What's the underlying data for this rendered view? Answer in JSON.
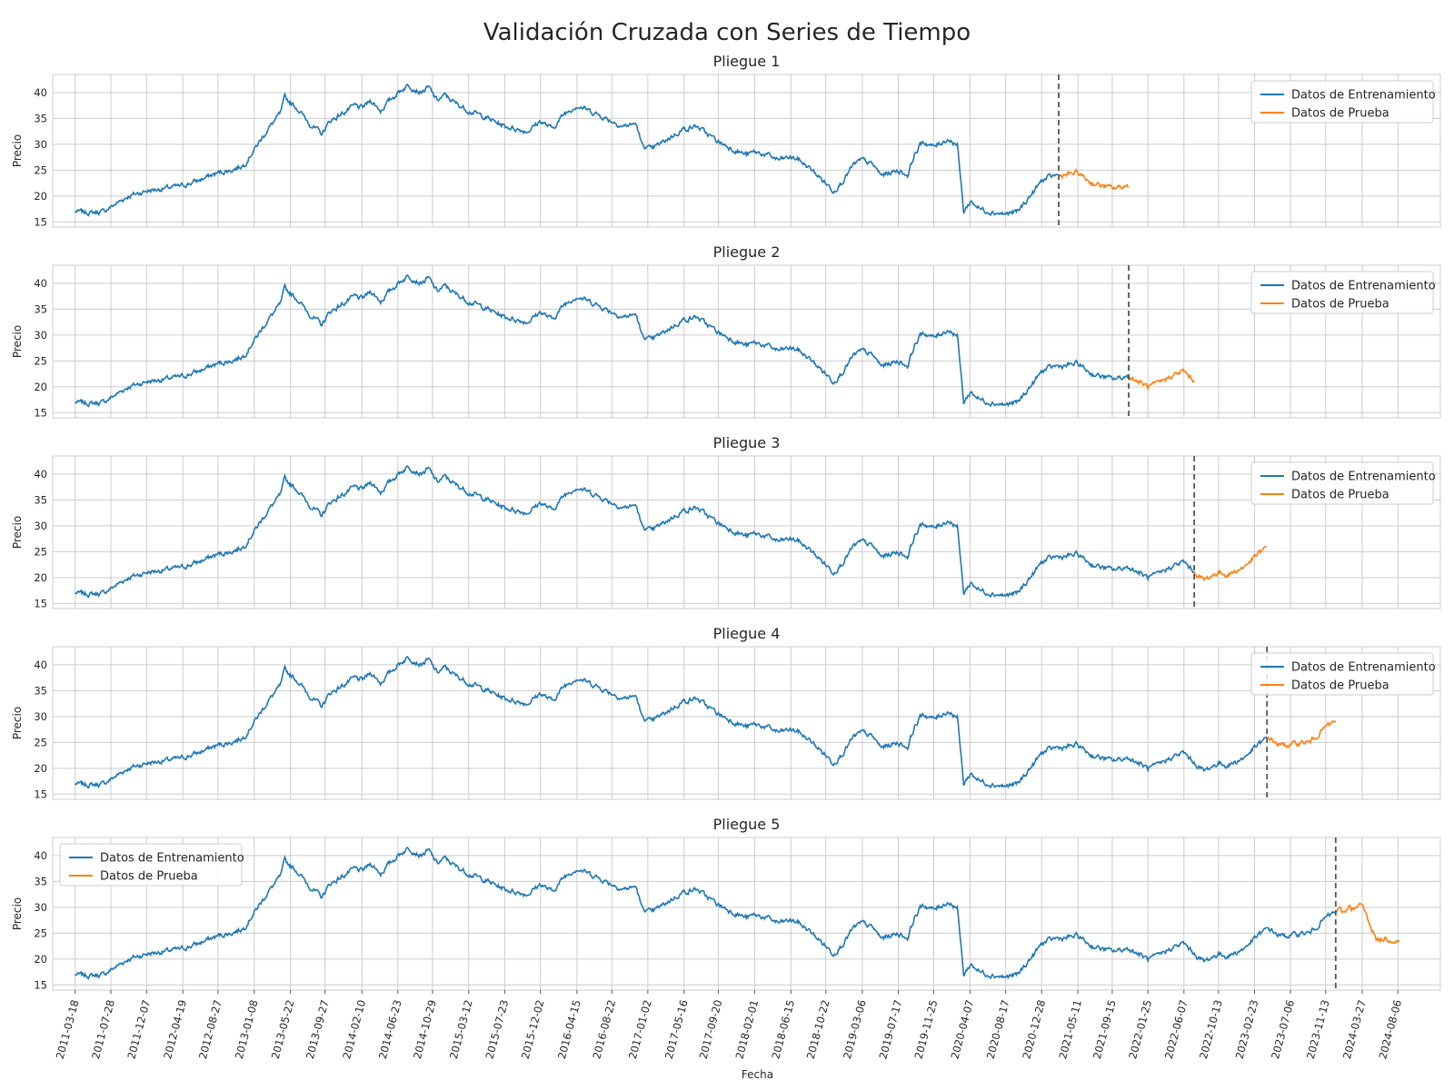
{
  "title": "Validación Cruzada con Series de Tiempo",
  "colors": {
    "train": "#1f77b4",
    "test": "#ff7f0e",
    "split": "#555555",
    "grid": "#cccccc"
  },
  "chart_data": {
    "type": "line",
    "x_axis": {
      "type": "date",
      "label": "Fecha",
      "range": [
        "2010-12-25",
        "2025-01-10"
      ],
      "tick_labels": [
        "2011-03-18",
        "2011-07-28",
        "2011-12-07",
        "2012-04-19",
        "2012-08-27",
        "2013-01-08",
        "2013-05-22",
        "2013-09-27",
        "2014-02-10",
        "2014-06-23",
        "2014-10-29",
        "2015-03-12",
        "2015-07-23",
        "2015-12-02",
        "2016-04-15",
        "2016-08-22",
        "2017-01-02",
        "2017-05-16",
        "2017-09-20",
        "2018-02-01",
        "2018-06-15",
        "2018-10-22",
        "2019-03-06",
        "2019-07-17",
        "2019-11-25",
        "2020-04-07",
        "2020-08-17",
        "2020-12-28",
        "2021-05-11",
        "2021-09-15",
        "2022-01-25",
        "2022-06-07",
        "2022-10-13",
        "2023-02-23",
        "2023-07-06",
        "2023-11-13",
        "2024-03-27",
        "2024-08-06"
      ]
    },
    "y_axis": {
      "label": "Precio",
      "range": [
        14,
        43.5
      ],
      "ticks": [
        15,
        20,
        25,
        30,
        35,
        40
      ]
    },
    "grid": true,
    "series_names": {
      "train": "Datos de Entrenamiento",
      "test": "Datos de Prueba"
    },
    "price_series": {
      "x": [
        "2011-03-18",
        "2011-05-15",
        "2011-07-01",
        "2011-08-15",
        "2011-10-01",
        "2011-12-07",
        "2012-02-15",
        "2012-04-19",
        "2012-06-15",
        "2012-08-27",
        "2012-10-15",
        "2012-12-01",
        "2013-01-08",
        "2013-03-01",
        "2013-04-15",
        "2013-05-01",
        "2013-06-15",
        "2013-08-01",
        "2013-09-15",
        "2013-10-15",
        "2013-12-01",
        "2014-01-15",
        "2014-02-10",
        "2014-03-15",
        "2014-04-20",
        "2014-05-15",
        "2014-06-23",
        "2014-08-01",
        "2014-09-15",
        "2014-10-15",
        "2014-11-15",
        "2014-12-15",
        "2015-01-20",
        "2015-03-12",
        "2015-05-01",
        "2015-07-23",
        "2015-09-01",
        "2015-10-15",
        "2015-12-02",
        "2016-01-15",
        "2016-03-01",
        "2016-04-15",
        "2016-06-01",
        "2016-08-22",
        "2016-10-01",
        "2016-11-20",
        "2016-12-10",
        "2017-01-15",
        "2017-03-15",
        "2017-05-16",
        "2017-07-01",
        "2017-09-20",
        "2017-11-15",
        "2018-01-01",
        "2018-02-01",
        "2018-03-15",
        "2018-05-01",
        "2018-06-15",
        "2018-07-15",
        "2018-09-01",
        "2018-10-22",
        "2018-11-20",
        "2018-12-25",
        "2019-02-01",
        "2019-03-06",
        "2019-04-15",
        "2019-05-15",
        "2019-07-17",
        "2019-08-20",
        "2019-09-15",
        "2019-10-15",
        "2019-11-25",
        "2020-01-15",
        "2020-02-20",
        "2020-03-15",
        "2020-04-10",
        "2020-05-15",
        "2020-06-20",
        "2020-08-17",
        "2020-10-01",
        "2020-12-01",
        "2020-12-28",
        "2021-02-15",
        "2021-03-20",
        "2021-05-11",
        "2021-07-01",
        "2021-09-15",
        "2021-11-15",
        "2022-01-25",
        "2022-03-01",
        "2022-04-15",
        "2022-06-07",
        "2022-07-15",
        "2022-08-20",
        "2022-10-13",
        "2022-11-15",
        "2023-01-15",
        "2023-02-23",
        "2023-04-15",
        "2023-05-25",
        "2023-07-06",
        "2023-08-15",
        "2023-09-15",
        "2023-11-13",
        "2024-01-01",
        "2024-01-25",
        "2024-02-05",
        "2024-02-25",
        "2024-03-27",
        "2024-04-20",
        "2024-05-20",
        "2024-06-20",
        "2024-08-06",
        "2024-09-15",
        "2024-10-01"
      ],
      "y": [
        17.0,
        16.8,
        17.0,
        18.5,
        20.0,
        21.0,
        21.5,
        22.0,
        23.0,
        24.5,
        25.0,
        26.0,
        29.0,
        33.0,
        36.0,
        39.0,
        37.0,
        34.0,
        32.0,
        34.5,
        36.0,
        37.5,
        37.0,
        38.5,
        36.5,
        38.0,
        40.0,
        41.5,
        40.0,
        41.0,
        38.5,
        39.5,
        38.0,
        36.5,
        35.5,
        33.5,
        33.0,
        32.5,
        34.5,
        33.0,
        36.0,
        37.5,
        36.5,
        34.5,
        33.5,
        34.0,
        30.0,
        29.0,
        31.0,
        33.0,
        33.5,
        30.5,
        29.0,
        28.0,
        28.5,
        28.0,
        27.0,
        27.5,
        27.0,
        25.0,
        22.5,
        21.0,
        23.0,
        26.0,
        27.0,
        26.0,
        24.0,
        25.0,
        24.0,
        28.0,
        30.5,
        29.5,
        31.0,
        30.0,
        17.0,
        19.0,
        17.5,
        17.0,
        16.5,
        17.0,
        21.0,
        23.0,
        24.0,
        24.0,
        24.5,
        22.5,
        21.5,
        22.0,
        20.0,
        20.5,
        22.0,
        23.0,
        21.0,
        19.5,
        21.0,
        20.5,
        22.0,
        24.0,
        26.0,
        24.5,
        24.5,
        25.0,
        25.0,
        28.0,
        29.5,
        29.0,
        30.5,
        29.5,
        30.5,
        27.5,
        23.5,
        24.0,
        23.5,
        23.0,
        23.5
      ]
    },
    "folds": [
      {
        "title": "Pliegue 1",
        "split": "2021-03-01",
        "test_end": "2021-11-15",
        "legend": "upper-right"
      },
      {
        "title": "Pliegue 2",
        "split": "2021-11-15",
        "test_end": "2022-07-15",
        "legend": "upper-right"
      },
      {
        "title": "Pliegue 3",
        "split": "2022-07-15",
        "test_end": "2023-04-10",
        "legend": "upper-right"
      },
      {
        "title": "Pliegue 4",
        "split": "2023-04-10",
        "test_end": "2023-12-20",
        "legend": "upper-right"
      },
      {
        "title": "Pliegue 5",
        "split": "2023-12-20",
        "test_end": "2024-08-15",
        "legend": "upper-left"
      }
    ]
  }
}
